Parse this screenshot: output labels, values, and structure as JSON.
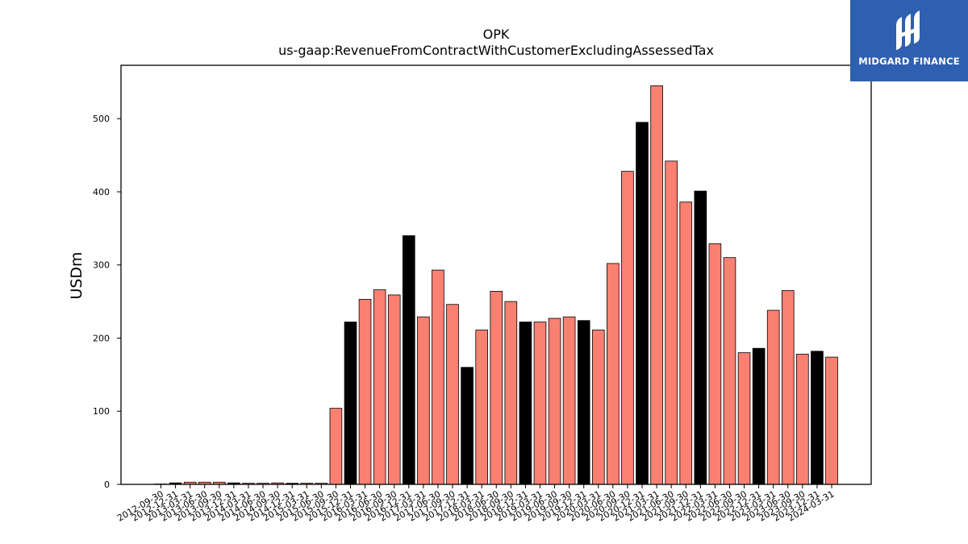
{
  "logo": {
    "brand": "MIDGARD FINANCE",
    "color": "#2f5fb0"
  },
  "chart_data": {
    "type": "bar",
    "title": "OPK",
    "subtitle": "us-gaap:RevenueFromContractWithCustomerExcludingAssessedTax",
    "xlabel": "",
    "ylabel": "USDm",
    "ylim": [
      0,
      573
    ],
    "yticks": [
      0,
      100,
      200,
      300,
      400,
      500
    ],
    "grid": false,
    "colors": {
      "quarterly": "#fa8072",
      "derived_q4": "#000000"
    },
    "categories": [
      "2012-09-30",
      "2012-12-31",
      "2013-03-31",
      "2013-06-30",
      "2013-09-30",
      "2013-12-31",
      "2014-03-31",
      "2014-06-30",
      "2014-09-30",
      "2014-12-31",
      "2015-03-31",
      "2015-06-30",
      "2015-09-30",
      "2015-12-31",
      "2016-03-31",
      "2016-06-30",
      "2016-09-30",
      "2016-12-31",
      "2017-03-31",
      "2017-06-30",
      "2017-09-30",
      "2017-12-31",
      "2018-03-31",
      "2018-06-30",
      "2018-09-30",
      "2018-12-31",
      "2019-03-31",
      "2019-06-30",
      "2019-09-30",
      "2019-12-31",
      "2020-03-31",
      "2020-06-30",
      "2020-09-30",
      "2020-12-31",
      "2021-03-31",
      "2021-06-30",
      "2021-09-30",
      "2021-12-31",
      "2022-03-31",
      "2022-06-30",
      "2022-09-30",
      "2022-12-31",
      "2023-03-31",
      "2023-06-30",
      "2023-09-30",
      "2023-12-31",
      "2024-03-31"
    ],
    "values": [
      0.5,
      2,
      3,
      3,
      3,
      2,
      1.5,
      1.5,
      2,
      1.5,
      1.5,
      1.5,
      104,
      222,
      253,
      266,
      259,
      340,
      229,
      293,
      246,
      160,
      211,
      264,
      250,
      222,
      222,
      227,
      229,
      224,
      211,
      302,
      428,
      495,
      545,
      442,
      386,
      401,
      329,
      310,
      180,
      186,
      238,
      265,
      178,
      182,
      174
    ],
    "bar_colors": [
      "#000000",
      "#000000",
      "#fa8072",
      "#fa8072",
      "#fa8072",
      "#000000",
      "#fa8072",
      "#fa8072",
      "#fa8072",
      "#000000",
      "#fa8072",
      "#fa8072",
      "#fa8072",
      "#000000",
      "#fa8072",
      "#fa8072",
      "#fa8072",
      "#000000",
      "#fa8072",
      "#fa8072",
      "#fa8072",
      "#000000",
      "#fa8072",
      "#fa8072",
      "#fa8072",
      "#000000",
      "#fa8072",
      "#fa8072",
      "#fa8072",
      "#000000",
      "#fa8072",
      "#fa8072",
      "#fa8072",
      "#000000",
      "#fa8072",
      "#fa8072",
      "#fa8072",
      "#000000",
      "#fa8072",
      "#fa8072",
      "#fa8072",
      "#000000",
      "#fa8072",
      "#fa8072",
      "#fa8072",
      "#000000",
      "#fa8072"
    ]
  }
}
